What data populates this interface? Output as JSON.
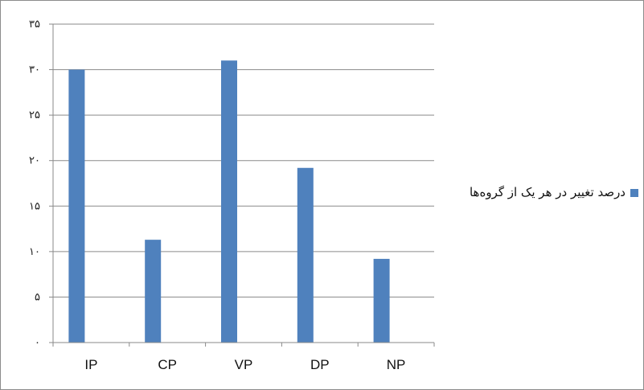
{
  "chart_data": {
    "type": "bar",
    "categories": [
      "IP",
      "CP",
      "VP",
      "DP",
      "NP"
    ],
    "series": [
      {
        "name": "درصد تغییر در هر یک از گروه‌ها",
        "values": [
          30,
          11.3,
          31,
          19.2,
          9.2
        ]
      }
    ],
    "ylim": [
      0,
      35
    ],
    "yticks": [
      0,
      5,
      10,
      15,
      20,
      25,
      30,
      35
    ],
    "ytick_labels": [
      "۰",
      "۵",
      "۱۰",
      "۱۵",
      "۲۰",
      "۲۵",
      "۳۰",
      "۳۵"
    ],
    "grid": true,
    "legend_position": "right",
    "bar_color": "#4f81bd"
  }
}
